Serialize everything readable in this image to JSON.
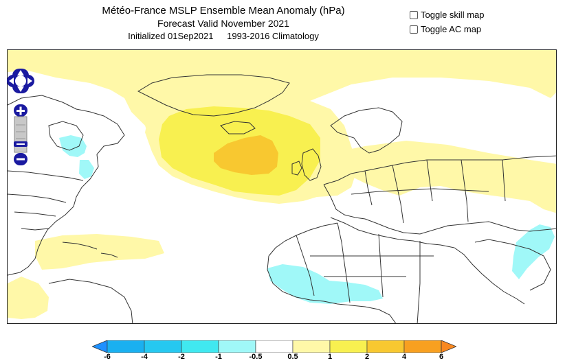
{
  "title": {
    "line1": "Météo-France MSLP Ensemble Mean Anomaly (hPa)",
    "line2": "Forecast Valid November 2021",
    "initialized": "Initialized 01Sep2021",
    "climatology": "1993-2016 Climatology"
  },
  "toggles": [
    {
      "label": "Toggle skill map",
      "checked": false
    },
    {
      "label": "Toggle AC map",
      "checked": false
    }
  ],
  "map_controls": {
    "pan": [
      "pan-up",
      "pan-left",
      "pan-right",
      "pan-down"
    ],
    "zoom": [
      "zoom-in",
      "zoom-out"
    ]
  },
  "colorbar": {
    "levels": [
      "-6",
      "-4",
      "-2",
      "-1",
      "-0.5",
      "0.5",
      "1",
      "2",
      "4",
      "6"
    ],
    "colors": [
      "#1e90ff",
      "#1ab0f0",
      "#26c8f0",
      "#40e8f0",
      "#a0f8f8",
      "#ffffff",
      "#fff8a8",
      "#f8f050",
      "#f8c830",
      "#f8a020",
      "#f88820"
    ]
  },
  "colors": {
    "map_frame": "#222222",
    "nav_control": "#1a1aa0",
    "country_border": "#333333"
  }
}
